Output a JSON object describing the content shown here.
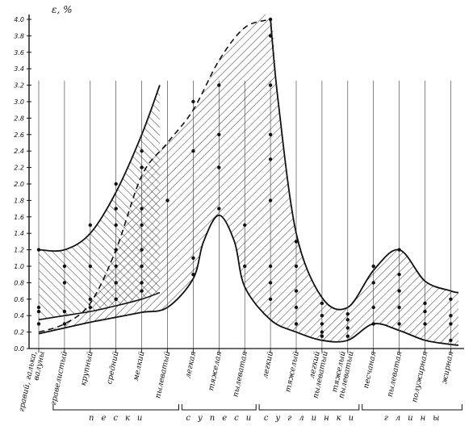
{
  "chart_data": {
    "type": "area",
    "title": "",
    "ylabel": "ε, %",
    "xlabel": "",
    "ylim": [
      0,
      4.0
    ],
    "yticks": [
      0.0,
      0.2,
      0.4,
      0.6,
      0.8,
      1.0,
      1.2,
      1.4,
      1.6,
      1.8,
      2.0,
      2.2,
      2.4,
      2.6,
      2.8,
      3.0,
      3.2,
      3.4,
      3.6,
      3.8,
      4.0
    ],
    "ytick_labels": [
      "0.0",
      "0.2",
      "0.4",
      "0.6",
      "0.8",
      "1.0",
      "1.2",
      "1.4",
      "1.6",
      "1.8",
      "2.0",
      "2.2",
      "2.4",
      "2.6",
      "2.8",
      "3.0",
      "3.2",
      "3.4",
      "3.6",
      "3.8",
      "4.0"
    ],
    "categories": [
      "гравий, галька, валуны",
      "гравелистый",
      "крупный",
      "средний",
      "мелкий",
      "пылеватый",
      "легкая",
      "тяжелая",
      "пылеватая",
      "легкий",
      "тяжелый",
      "легкий пылеватый",
      "тяжелый пылеватый",
      "песчаная",
      "пылеватая",
      "полужирная",
      "жирная"
    ],
    "groups": [
      {
        "label": "пески",
        "from": 1,
        "to": 5
      },
      {
        "label": "супеси",
        "from": 6,
        "to": 8
      },
      {
        "label": "суглинки",
        "from": 9,
        "to": 12
      },
      {
        "label": "глины",
        "from": 13,
        "to": 16
      }
    ],
    "series": [
      {
        "upper": [
          [
            0,
            1.2
          ],
          [
            1,
            1.2
          ],
          [
            2,
            1.4
          ],
          [
            3,
            1.9
          ],
          [
            4,
            2.6
          ],
          [
            4.7,
            3.2
          ]
        ],
        "lower": [
          [
            0,
            0.35
          ],
          [
            1,
            0.4
          ],
          [
            2,
            0.45
          ],
          [
            3,
            0.52
          ],
          [
            4,
            0.6
          ],
          [
            4.7,
            0.68
          ]
        ]
      },
      {
        "upper_dashed": [
          [
            0,
            0.2
          ],
          [
            1,
            0.3
          ],
          [
            2,
            0.55
          ],
          [
            3,
            1.2
          ],
          [
            4,
            2.1
          ],
          [
            5,
            2.5
          ],
          [
            6,
            2.9
          ],
          [
            7,
            3.5
          ],
          [
            8,
            3.9
          ],
          [
            9,
            4.0
          ]
        ],
        "upper": [
          [
            9,
            4.0
          ],
          [
            9.3,
            3.0
          ],
          [
            10,
            1.4
          ],
          [
            11,
            0.62
          ],
          [
            12,
            0.5
          ],
          [
            13,
            0.95
          ],
          [
            14,
            1.2
          ],
          [
            15,
            0.82
          ],
          [
            16,
            0.7
          ],
          [
            16.3,
            0.68
          ]
        ],
        "lower": [
          [
            0,
            0.18
          ],
          [
            1,
            0.25
          ],
          [
            2,
            0.32
          ],
          [
            3,
            0.38
          ],
          [
            4,
            0.44
          ],
          [
            5,
            0.5
          ],
          [
            6,
            0.85
          ],
          [
            6.4,
            1.3
          ],
          [
            7,
            1.62
          ],
          [
            7.6,
            1.3
          ],
          [
            8,
            0.75
          ],
          [
            9,
            0.35
          ],
          [
            10,
            0.2
          ],
          [
            11,
            0.1
          ],
          [
            12,
            0.1
          ],
          [
            13,
            0.3
          ],
          [
            14,
            0.22
          ],
          [
            15,
            0.1
          ],
          [
            16,
            0.05
          ],
          [
            16.3,
            0.04
          ]
        ]
      }
    ],
    "measurements": [
      {
        "x": 0,
        "y": [
          0.3,
          0.45,
          0.5,
          1.2
        ]
      },
      {
        "x": 1,
        "y": [
          0.3,
          0.45,
          0.8,
          1.0
        ]
      },
      {
        "x": 2,
        "y": [
          0.5,
          0.6,
          1.0,
          1.5
        ]
      },
      {
        "x": 3,
        "y": [
          0.6,
          0.8,
          1.0,
          1.2,
          1.5,
          1.7,
          2.0
        ]
      },
      {
        "x": 4,
        "y": [
          0.7,
          0.8,
          1.0,
          1.2,
          1.5,
          1.7,
          2.2,
          2.4
        ]
      },
      {
        "x": 5,
        "y": [
          1.8
        ]
      },
      {
        "x": 6,
        "y": [
          0.9,
          1.1,
          2.4,
          3.0
        ]
      },
      {
        "x": 7,
        "y": [
          1.7,
          2.2,
          2.6,
          3.2
        ]
      },
      {
        "x": 8,
        "y": [
          1.0,
          1.5
        ]
      },
      {
        "x": 9,
        "y": [
          0.6,
          0.8,
          1.0,
          1.8,
          2.3,
          2.6,
          3.2,
          3.8,
          4.0
        ]
      },
      {
        "x": 10,
        "y": [
          0.3,
          0.5,
          0.7,
          1.0,
          1.3
        ]
      },
      {
        "x": 11,
        "y": [
          0.15,
          0.2,
          0.3,
          0.4,
          0.55
        ]
      },
      {
        "x": 12,
        "y": [
          0.15,
          0.25,
          0.35,
          0.42
        ]
      },
      {
        "x": 13,
        "y": [
          0.3,
          0.5,
          0.8,
          1.0
        ]
      },
      {
        "x": 14,
        "y": [
          0.3,
          0.5,
          0.7,
          0.9,
          1.2
        ]
      },
      {
        "x": 15,
        "y": [
          0.3,
          0.45,
          0.55
        ]
      },
      {
        "x": 16,
        "y": [
          0.1,
          0.3,
          0.4,
          0.6
        ]
      }
    ],
    "grid": false,
    "legend": "none"
  }
}
